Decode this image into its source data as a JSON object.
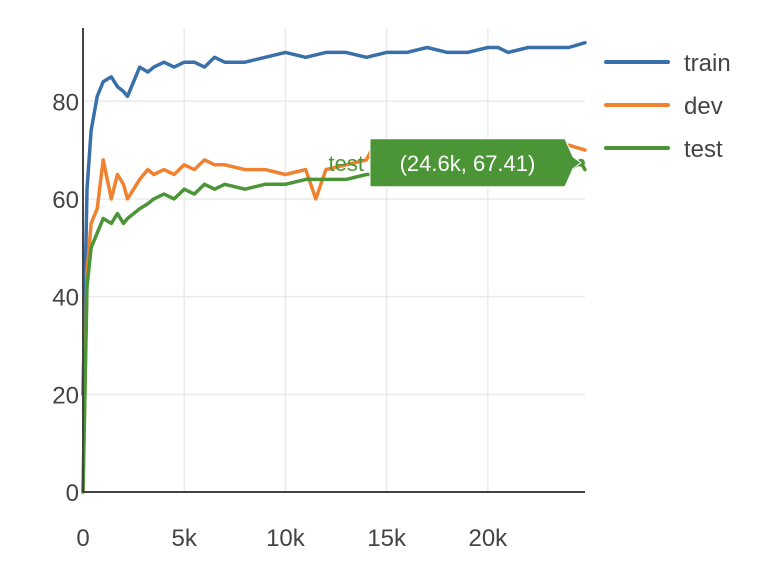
{
  "colors": {
    "train": "#3a70aa",
    "dev": "#f0822f",
    "test": "#4b9536",
    "grid": "#eaeaea",
    "axis": "#444444",
    "hover_text": "#ffffff"
  },
  "chart_data": {
    "type": "line",
    "title": "",
    "xlabel": "",
    "ylabel": "",
    "xlim": [
      0,
      24800
    ],
    "ylim": [
      0,
      95
    ],
    "x_ticks": [
      0,
      5000,
      10000,
      15000,
      20000
    ],
    "x_tick_labels": [
      "0",
      "5k",
      "10k",
      "15k",
      "20k"
    ],
    "y_ticks": [
      0,
      20,
      40,
      60,
      80
    ],
    "y_tick_labels": [
      "0",
      "20",
      "40",
      "60",
      "80"
    ],
    "grid": true,
    "legend_position": "top-right",
    "series": [
      {
        "name": "train",
        "color": "#3a70aa",
        "x": [
          0,
          200,
          400,
          700,
          1000,
          1400,
          1700,
          2000,
          2200,
          2500,
          2800,
          3200,
          3500,
          4000,
          4500,
          5000,
          5500,
          6000,
          6500,
          7000,
          8000,
          9000,
          10000,
          11000,
          12000,
          13000,
          14000,
          15000,
          16000,
          17000,
          18000,
          19000,
          20000,
          20500,
          21000,
          22000,
          23000,
          24000,
          24800
        ],
        "y": [
          20,
          62,
          74,
          81,
          84,
          85,
          83,
          82,
          81,
          84,
          87,
          86,
          87,
          88,
          87,
          88,
          88,
          87,
          89,
          88,
          88,
          89,
          90,
          89,
          90,
          90,
          89,
          90,
          90,
          91,
          90,
          90,
          91,
          91,
          90,
          91,
          91,
          91,
          92
        ]
      },
      {
        "name": "dev",
        "color": "#f0822f",
        "x": [
          0,
          200,
          400,
          700,
          1000,
          1400,
          1700,
          2000,
          2200,
          2500,
          2800,
          3200,
          3500,
          4000,
          4500,
          5000,
          5500,
          6000,
          6500,
          7000,
          8000,
          9000,
          10000,
          11000,
          11500,
          12000,
          13000,
          14000,
          14500,
          15000,
          16000,
          17000,
          18000,
          19000,
          20000,
          21000,
          22000,
          23000,
          24000,
          24800
        ],
        "y": [
          0,
          45,
          55,
          58,
          68,
          60,
          65,
          63,
          60,
          62,
          64,
          66,
          65,
          66,
          65,
          67,
          66,
          68,
          67,
          67,
          66,
          66,
          65,
          66,
          60,
          66,
          67,
          68,
          72,
          69,
          69,
          70,
          70,
          71,
          70,
          71,
          71,
          70,
          71,
          70
        ]
      },
      {
        "name": "test",
        "color": "#4b9536",
        "x": [
          0,
          200,
          400,
          700,
          1000,
          1400,
          1700,
          2000,
          2200,
          2500,
          2800,
          3200,
          3500,
          4000,
          4500,
          5000,
          5500,
          6000,
          6500,
          7000,
          8000,
          9000,
          10000,
          11000,
          12000,
          13000,
          14000,
          15000,
          16000,
          17000,
          18000,
          19000,
          20000,
          21000,
          22000,
          23000,
          24000,
          24600,
          24800
        ],
        "y": [
          0,
          42,
          50,
          53,
          56,
          55,
          57,
          55,
          56,
          57,
          58,
          59,
          60,
          61,
          60,
          62,
          61,
          63,
          62,
          63,
          62,
          63,
          63,
          64,
          64,
          64,
          65,
          65,
          65,
          65,
          65,
          66,
          66,
          66,
          66,
          67,
          66,
          67.41,
          66
        ]
      }
    ],
    "hover": {
      "series": "test",
      "label": "test",
      "value_text": "(24.6k, 67.41)",
      "x": 24600,
      "y": 67.41
    }
  }
}
